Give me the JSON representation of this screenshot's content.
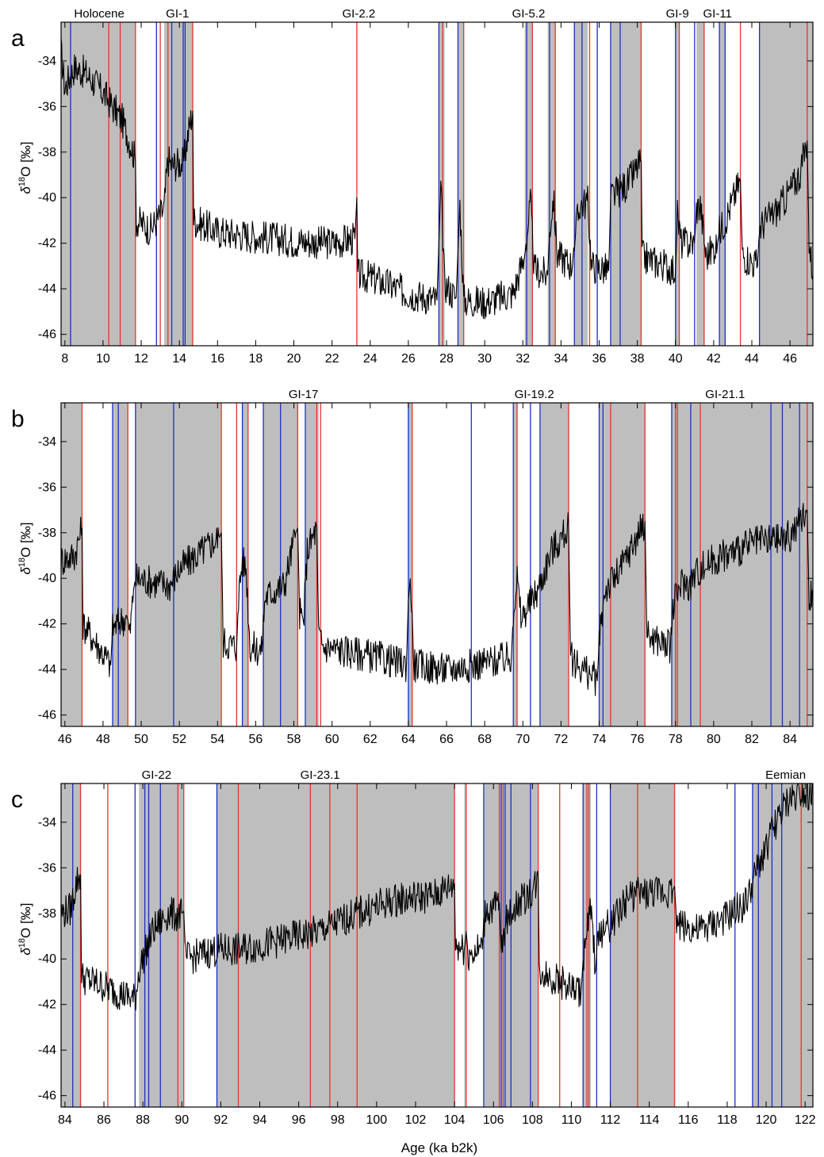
{
  "figure": {
    "xlabel": "Age (ka b2k)",
    "ylabel_prefix": "δ",
    "ylabel_sup": "18",
    "ylabel_suffix": "O [‰]"
  },
  "colors": {
    "shade": "#bebebe",
    "red_line": "#e8332c",
    "blue_line": "#1d2fc4",
    "curve": "#000000"
  },
  "chart_data": [
    {
      "type": "line",
      "panel_label": "a",
      "xlim": [
        7.8,
        47.2
      ],
      "ylim": [
        -46.5,
        -32.3
      ],
      "xticks": [
        8,
        10,
        12,
        14,
        16,
        18,
        20,
        22,
        24,
        26,
        28,
        30,
        32,
        34,
        36,
        38,
        40,
        42,
        44,
        46
      ],
      "yticks": [
        -34,
        -36,
        -38,
        -40,
        -42,
        -44,
        -46
      ],
      "annotations": [
        {
          "text": "Holocene",
          "x": 9.8
        },
        {
          "text": "GI-1",
          "x": 13.9
        },
        {
          "text": "GI-2.2",
          "x": 23.4
        },
        {
          "text": "GI-5.2",
          "x": 32.3
        },
        {
          "text": "GI-9",
          "x": 40.1
        },
        {
          "text": "GI-11",
          "x": 42.2
        }
      ],
      "shaded": [
        [
          7.8,
          11.7
        ],
        [
          13.2,
          14.7
        ],
        [
          27.6,
          27.9
        ],
        [
          28.6,
          28.9
        ],
        [
          32.1,
          32.5
        ],
        [
          33.3,
          33.7
        ],
        [
          34.7,
          35.4
        ],
        [
          36.6,
          38.2
        ],
        [
          40.0,
          40.2
        ],
        [
          41.1,
          41.5
        ],
        [
          42.3,
          42.6
        ],
        [
          44.4,
          47.2
        ]
      ],
      "red_lines": [
        10.3,
        10.9,
        11.7,
        13.0,
        13.4,
        14.7,
        23.3,
        27.8,
        28.9,
        32.5,
        33.7,
        35.5,
        38.2,
        40.2,
        41.5,
        43.4,
        46.9
      ],
      "blue_lines": [
        8.3,
        12.8,
        13.6,
        14.2,
        14.3,
        27.6,
        28.6,
        32.2,
        33.4,
        34.7,
        35.1,
        35.9,
        36.6,
        37.1,
        40.0,
        41.0,
        42.3,
        42.6,
        44.4
      ],
      "series": [
        {
          "x": [
            7.8,
            8.0,
            8.2,
            8.5,
            9.0,
            9.5,
            10.0,
            10.5,
            11.0,
            11.5,
            11.7,
            11.75,
            12.5,
            13.2,
            13.4,
            13.6,
            13.9,
            14.2,
            14.5,
            14.7,
            14.75,
            16,
            18,
            20,
            22,
            23.2,
            23.3,
            23.35,
            24,
            26,
            27.5,
            27.6,
            27.7,
            27.9,
            28.5,
            28.6,
            28.7,
            28.9,
            30,
            31.5,
            32.1,
            32.2,
            32.4,
            32.6,
            33.3,
            33.4,
            33.6,
            33.8,
            34.6,
            34.7,
            35.0,
            35.4,
            35.6,
            36.5,
            36.6,
            37.5,
            38.2,
            38.25,
            39.5,
            40.0,
            40.1,
            40.3,
            41.0,
            41.1,
            41.3,
            41.6,
            42.2,
            42.3,
            42.6,
            43.4,
            43.5,
            44.3,
            44.4,
            45.5,
            46.5,
            46.9,
            47.0,
            47.2
          ],
          "values": [
            -33.6,
            -35.2,
            -34.8,
            -34.3,
            -34.5,
            -34.9,
            -35.4,
            -36.0,
            -36.6,
            -37.8,
            -38.4,
            -41.0,
            -41.4,
            -40.5,
            -38.3,
            -38.6,
            -38.5,
            -38.5,
            -37.0,
            -36.2,
            -41.0,
            -41.5,
            -41.7,
            -41.9,
            -42.0,
            -41.8,
            -40.0,
            -43.4,
            -43.5,
            -44.2,
            -44.5,
            -42.0,
            -39.5,
            -43.8,
            -44.4,
            -42.3,
            -40.3,
            -44.5,
            -44.6,
            -44.2,
            -42.5,
            -41.8,
            -40.2,
            -43.2,
            -43.4,
            -41.5,
            -40.0,
            -42.5,
            -43.0,
            -41.8,
            -40.3,
            -40.2,
            -43.0,
            -43.2,
            -40.0,
            -39.4,
            -38.4,
            -42.6,
            -43.0,
            -43.2,
            -40.8,
            -42.0,
            -42.0,
            -40.5,
            -40.3,
            -42.6,
            -42.0,
            -41.5,
            -41.0,
            -39.2,
            -42.5,
            -43.0,
            -41.3,
            -40.4,
            -39.0,
            -37.5,
            -42.0,
            -43.4
          ]
        }
      ]
    },
    {
      "type": "line",
      "panel_label": "b",
      "xlim": [
        45.8,
        85.2
      ],
      "ylim": [
        -46.5,
        -32.3
      ],
      "xticks": [
        46,
        48,
        50,
        52,
        54,
        56,
        58,
        60,
        62,
        64,
        66,
        68,
        70,
        72,
        74,
        76,
        78,
        80,
        82,
        84
      ],
      "yticks": [
        -34,
        -36,
        -38,
        -40,
        -42,
        -44,
        -46
      ],
      "annotations": [
        {
          "text": "GI-17",
          "x": 58.5
        },
        {
          "text": "GI-19.2",
          "x": 70.6
        },
        {
          "text": "GI-21.1",
          "x": 80.6
        }
      ],
      "shaded": [
        [
          45.8,
          46.9
        ],
        [
          48.5,
          49.3
        ],
        [
          49.7,
          54.2
        ],
        [
          55.3,
          55.6
        ],
        [
          56.4,
          58.2
        ],
        [
          58.6,
          59.3
        ],
        [
          64.0,
          64.2
        ],
        [
          69.5,
          69.7
        ],
        [
          70.9,
          72.4
        ],
        [
          74.0,
          76.4
        ],
        [
          77.8,
          85.2
        ]
      ],
      "red_lines": [
        46.9,
        49.3,
        54.2,
        55.0,
        55.6,
        58.2,
        59.2,
        59.4,
        64.2,
        69.7,
        72.4,
        74.6,
        76.4,
        78.0,
        78.1,
        79.3,
        84.9
      ],
      "blue_lines": [
        48.5,
        48.8,
        49.7,
        51.7,
        55.3,
        56.4,
        57.3,
        58.6,
        64.0,
        67.3,
        69.5,
        70.4,
        70.9,
        74.0,
        74.2,
        77.8,
        78.8,
        83.0,
        83.6,
        84.5
      ],
      "series": [
        {
          "x": [
            45.8,
            46.5,
            46.9,
            46.95,
            48.4,
            48.5,
            49.0,
            49.3,
            49.4,
            49.6,
            49.7,
            51.5,
            52.0,
            54.1,
            54.2,
            54.3,
            55.0,
            55.1,
            55.3,
            55.5,
            55.7,
            56.3,
            56.5,
            57.5,
            58.1,
            58.2,
            58.3,
            58.5,
            58.7,
            59.0,
            59.2,
            59.3,
            59.5,
            62,
            63.9,
            64.0,
            64.1,
            64.3,
            66,
            69.4,
            69.5,
            69.7,
            69.9,
            70.8,
            71.5,
            72.4,
            72.5,
            73.9,
            74.0,
            74.3,
            75.0,
            76.4,
            76.5,
            77.7,
            77.9,
            78.3,
            78.8,
            79.0,
            80.0,
            82.0,
            84.0,
            84.9,
            85.0,
            85.2
          ],
          "values": [
            -39.2,
            -39.0,
            -37.8,
            -42.0,
            -43.8,
            -42.2,
            -41.8,
            -41.8,
            -42.5,
            -40.5,
            -40.0,
            -40.3,
            -39.6,
            -38.2,
            -38.0,
            -42.8,
            -43.0,
            -40.8,
            -39.2,
            -39.6,
            -43.0,
            -43.2,
            -40.8,
            -40.3,
            -38.0,
            -37.8,
            -41.5,
            -42.0,
            -38.8,
            -38.2,
            -37.8,
            -42.5,
            -43.0,
            -43.4,
            -43.8,
            -41.0,
            -40.0,
            -43.8,
            -44.0,
            -43.5,
            -41.5,
            -40.0,
            -41.8,
            -40.5,
            -38.8,
            -37.8,
            -43.5,
            -44.5,
            -42.8,
            -40.5,
            -39.8,
            -37.5,
            -42.5,
            -43.0,
            -41.2,
            -40.2,
            -40.3,
            -39.8,
            -39.2,
            -38.5,
            -38.2,
            -37.0,
            -41.0,
            -40.5
          ]
        }
      ]
    },
    {
      "type": "line",
      "panel_label": "c",
      "xlim": [
        83.8,
        122.4
      ],
      "ylim": [
        -46.5,
        -32.3
      ],
      "xticks": [
        84,
        86,
        88,
        90,
        92,
        94,
        96,
        98,
        100,
        102,
        104,
        106,
        108,
        110,
        112,
        114,
        116,
        118,
        120,
        122
      ],
      "yticks": [
        -34,
        -36,
        -38,
        -40,
        -42,
        -44,
        -46
      ],
      "annotations": [
        {
          "text": "GI-22",
          "x": 88.7
        },
        {
          "text": "GI-23.1",
          "x": 97.1
        },
        {
          "text": "Eemian",
          "x": 121.0
        }
      ],
      "shaded": [
        [
          83.8,
          84.8
        ],
        [
          87.8,
          90.1
        ],
        [
          91.8,
          104.0
        ],
        [
          104.5,
          104.6
        ],
        [
          105.5,
          108.3
        ],
        [
          110.6,
          111.0
        ],
        [
          112.0,
          115.3
        ],
        [
          119.3,
          122.4
        ]
      ],
      "red_lines": [
        84.8,
        86.2,
        89.8,
        90.1,
        92.9,
        96.6,
        97.6,
        99.0,
        104.0,
        104.6,
        106.3,
        106.5,
        108.3,
        109.4,
        110.8,
        110.9,
        113.4,
        115.3,
        121.8
      ],
      "blue_lines": [
        84.4,
        87.6,
        88.1,
        88.3,
        88.9,
        91.8,
        105.5,
        106.4,
        106.6,
        106.9,
        107.9,
        110.6,
        111.3,
        112.0,
        118.4,
        119.3,
        119.6,
        120.3,
        120.8
      ],
      "series": [
        {
          "x": [
            83.8,
            84.3,
            84.6,
            84.8,
            84.85,
            86.0,
            87.6,
            87.8,
            88.5,
            89.3,
            89.8,
            90.0,
            90.1,
            90.2,
            91.0,
            91.8,
            93,
            95,
            97,
            99,
            101,
            103,
            104.0,
            104.05,
            104.5,
            104.6,
            104.7,
            105.4,
            105.6,
            106.0,
            106.3,
            106.4,
            106.6,
            107.0,
            108.0,
            108.3,
            108.35,
            110.5,
            110.6,
            110.8,
            111.0,
            111.2,
            111.5,
            112.0,
            113,
            115.2,
            115.3,
            115.4,
            116.5,
            118.0,
            119.0,
            119.5,
            120.5,
            121.2,
            121.8,
            122.4
          ],
          "values": [
            -38.0,
            -37.8,
            -36.6,
            -36.3,
            -40.8,
            -41.2,
            -41.8,
            -40.5,
            -38.8,
            -38.0,
            -38.1,
            -38.0,
            -37.9,
            -40.0,
            -39.8,
            -39.6,
            -39.6,
            -39.2,
            -38.8,
            -38.0,
            -37.4,
            -37.2,
            -36.7,
            -39.3,
            -39.6,
            -38.8,
            -39.8,
            -39.5,
            -37.8,
            -37.8,
            -37.5,
            -39.8,
            -38.5,
            -37.8,
            -37.0,
            -36.5,
            -40.5,
            -41.5,
            -40.0,
            -38.8,
            -37.8,
            -40.0,
            -38.8,
            -38.5,
            -37.2,
            -37.0,
            -36.8,
            -38.4,
            -38.8,
            -38.2,
            -37.5,
            -36.2,
            -34.0,
            -33.0,
            -32.6,
            -32.8
          ]
        }
      ]
    }
  ]
}
